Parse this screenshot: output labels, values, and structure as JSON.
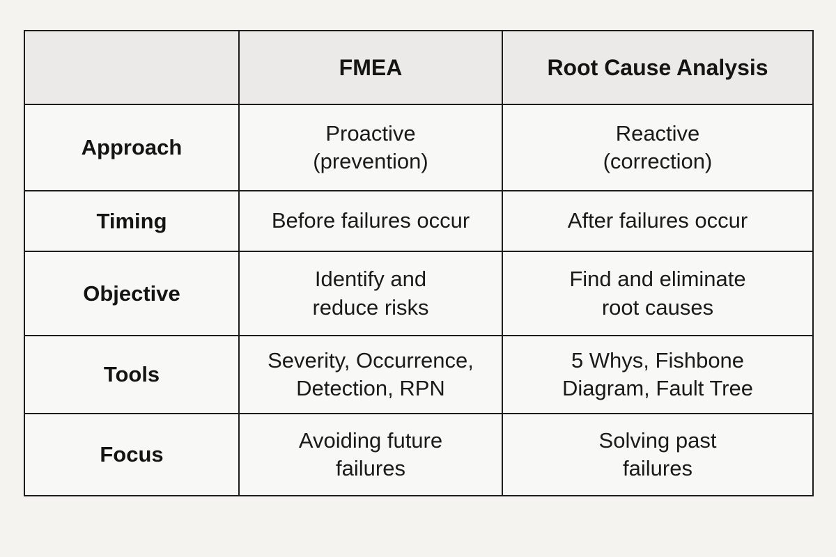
{
  "colors": {
    "page_background": "#f4f3f0",
    "header_row_background": "#ebeae8",
    "cell_background": "#f8f8f6",
    "border": "#1c1c1c",
    "text": "#1a1a1a"
  },
  "chart_data": {
    "type": "table",
    "columns": [
      "",
      "FMEA",
      "Root Cause Analysis"
    ],
    "rows": [
      {
        "label": "Approach",
        "fmea": [
          "Proactive",
          "(prevention)"
        ],
        "rca": [
          "Reactive",
          "(correction)"
        ]
      },
      {
        "label": "Timing",
        "fmea": [
          "Before failures occur"
        ],
        "rca": [
          "After failures occur"
        ]
      },
      {
        "label": "Objective",
        "fmea": [
          "Identify and",
          "reduce risks"
        ],
        "rca": [
          "Find and eliminate",
          "root causes"
        ]
      },
      {
        "label": "Tools",
        "fmea": [
          "Severity, Occurrence,",
          "Detection, RPN"
        ],
        "rca": [
          "5 Whys, Fishbone",
          "Diagram, Fault Tree"
        ]
      },
      {
        "label": "Focus",
        "fmea": [
          "Avoiding future",
          "failures"
        ],
        "rca": [
          "Solving past",
          "failures"
        ]
      }
    ]
  }
}
